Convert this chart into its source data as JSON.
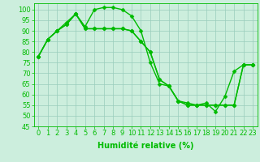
{
  "xlabel": "Humidité relative (%)",
  "x": [
    0,
    1,
    2,
    3,
    4,
    5,
    6,
    7,
    8,
    9,
    10,
    11,
    12,
    13,
    14,
    15,
    16,
    17,
    18,
    19,
    20,
    21,
    22,
    23
  ],
  "series": [
    [
      78,
      86,
      90,
      94,
      98,
      92,
      100,
      101,
      101,
      100,
      97,
      90,
      75,
      65,
      64,
      57,
      56,
      55,
      56,
      52,
      59,
      71,
      74,
      74
    ],
    [
      78,
      86,
      90,
      93,
      98,
      91,
      91,
      91,
      91,
      91,
      90,
      85,
      80,
      67,
      64,
      57,
      55,
      55,
      55,
      55,
      55,
      55,
      74,
      74
    ],
    [
      78,
      86,
      90,
      93,
      98,
      91,
      91,
      91,
      91,
      91,
      90,
      85,
      80,
      67,
      64,
      57,
      55,
      55,
      55,
      55,
      55,
      55,
      74,
      74
    ]
  ],
  "line_color": "#00bb00",
  "marker": "D",
  "marker_size": 2.5,
  "bg_color": "#cceedd",
  "grid_color": "#99ccbb",
  "ylim": [
    45,
    103
  ],
  "xlim": [
    -0.5,
    23.5
  ],
  "yticks": [
    45,
    50,
    55,
    60,
    65,
    70,
    75,
    80,
    85,
    90,
    95,
    100
  ],
  "xlabel_fontsize": 7,
  "tick_fontsize": 6,
  "line_width": 1.0
}
